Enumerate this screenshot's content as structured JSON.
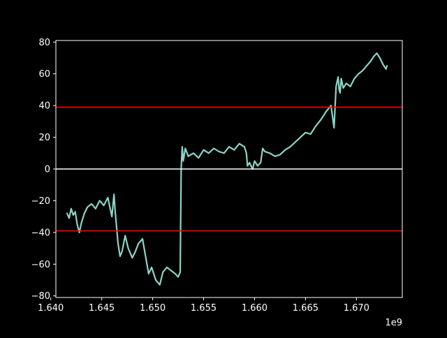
{
  "chart_data": {
    "type": "line",
    "title": "",
    "xlabel": "",
    "ylabel": "",
    "x_offset_label": "1e9",
    "xlim": [
      1.6405,
      1.6745
    ],
    "ylim": [
      -81,
      81
    ],
    "x_ticks": [
      1.64,
      1.645,
      1.65,
      1.655,
      1.66,
      1.665,
      1.67
    ],
    "x_tick_labels": [
      "1.640",
      "1.645",
      "1.650",
      "1.655",
      "1.660",
      "1.665",
      "1.670"
    ],
    "y_ticks": [
      -80,
      -60,
      -40,
      -20,
      0,
      20,
      40,
      60,
      80
    ],
    "y_tick_labels": [
      "−80",
      "−60",
      "−40",
      "−20",
      "0",
      "20",
      "40",
      "60",
      "80"
    ],
    "grid": false,
    "background": "#000000",
    "foreground": "#ffffff",
    "series": [
      {
        "color": "#8dd3c7",
        "x": [
          1.6416,
          1.6418,
          1.642,
          1.6422,
          1.6424,
          1.6426,
          1.6428,
          1.643,
          1.6433,
          1.6436,
          1.644,
          1.6444,
          1.6448,
          1.6452,
          1.6456,
          1.646,
          1.6462,
          1.6463,
          1.6466,
          1.6468,
          1.647,
          1.6473,
          1.6476,
          1.648,
          1.6483,
          1.6486,
          1.649,
          1.6493,
          1.6496,
          1.6499,
          1.6503,
          1.6507,
          1.651,
          1.6514,
          1.6518,
          1.6522,
          1.6525,
          1.6527,
          1.6528,
          1.6529,
          1.653,
          1.6532,
          1.6535,
          1.654,
          1.6545,
          1.655,
          1.6555,
          1.656,
          1.6565,
          1.657,
          1.6575,
          1.658,
          1.6585,
          1.659,
          1.6592,
          1.6593,
          1.6595,
          1.6598,
          1.66,
          1.6603,
          1.6606,
          1.6608,
          1.661,
          1.6615,
          1.662,
          1.6625,
          1.663,
          1.6635,
          1.664,
          1.6645,
          1.665,
          1.6655,
          1.666,
          1.6665,
          1.667,
          1.6675,
          1.6678,
          1.668,
          1.6682,
          1.6683,
          1.6684,
          1.6685,
          1.6687,
          1.669,
          1.6694,
          1.6698,
          1.6702,
          1.6706,
          1.671,
          1.6714,
          1.6717,
          1.672,
          1.6723,
          1.6726,
          1.6729,
          1.673
        ],
        "y": [
          -28,
          -31,
          -25,
          -29,
          -27,
          -35,
          -40,
          -34,
          -28,
          -24,
          -22,
          -25,
          -20,
          -23,
          -18,
          -30,
          -16,
          -25,
          -47,
          -55,
          -52,
          -42,
          -50,
          -56,
          -52,
          -47,
          -44,
          -55,
          -66,
          -62,
          -70,
          -73,
          -65,
          -62,
          -64,
          -66,
          -68,
          -65,
          0,
          14,
          5,
          13,
          8,
          10,
          7,
          12,
          10,
          13,
          11,
          10,
          14,
          12,
          16,
          14,
          10,
          2,
          4,
          0,
          5,
          2,
          4,
          13,
          11,
          10,
          8,
          9,
          12,
          14,
          17,
          20,
          23,
          22,
          27,
          31,
          36,
          40,
          26,
          52,
          58,
          50,
          48,
          57,
          51,
          54,
          52,
          57,
          60,
          62,
          65,
          68,
          71,
          73,
          70,
          66,
          63,
          65
        ]
      }
    ],
    "hlines": [
      {
        "y": 39,
        "color": "#ff0000"
      },
      {
        "y": -39,
        "color": "#ff0000"
      },
      {
        "y": 0,
        "color": "#ffffff"
      }
    ]
  }
}
